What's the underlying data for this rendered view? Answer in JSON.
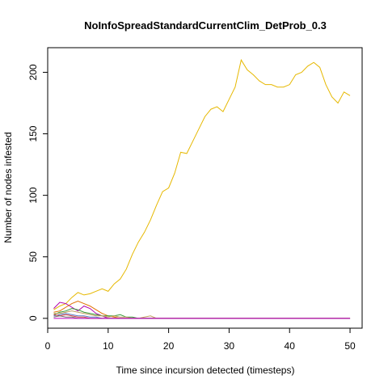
{
  "chart_data": {
    "type": "line",
    "title": "NoInfoSpreadStandardCurrentClim_DetProb_0.3",
    "xlabel": "Time since incursion detected (timesteps)",
    "ylabel": "Number of nodes infested",
    "xlim": [
      0,
      52
    ],
    "ylim": [
      -8,
      220
    ],
    "xticks": [
      0,
      10,
      20,
      30,
      40,
      50
    ],
    "yticks": [
      0,
      50,
      100,
      150,
      200
    ],
    "grid": false,
    "legend": "none",
    "series": [
      {
        "color": "#E6B800",
        "x": [
          1,
          2,
          3,
          4,
          5,
          6,
          7,
          8,
          9,
          10,
          11,
          12,
          13,
          14,
          15,
          16,
          17,
          18,
          19,
          20,
          21,
          22,
          23,
          24,
          25,
          26,
          27,
          28,
          29,
          30,
          31,
          32,
          33,
          34,
          35,
          36,
          37,
          38,
          39,
          40,
          41,
          42,
          43,
          44,
          45,
          46,
          47,
          48,
          49,
          50
        ],
        "y": [
          7,
          10,
          12,
          17,
          21,
          19,
          20,
          22,
          24,
          22,
          28,
          32,
          40,
          52,
          62,
          70,
          80,
          92,
          103,
          106,
          118,
          135,
          134,
          144,
          154,
          164,
          170,
          172,
          168,
          178,
          188,
          210,
          202,
          198,
          193,
          190,
          190,
          188,
          188,
          190,
          198,
          200,
          205,
          208,
          204,
          190,
          180,
          175,
          184,
          181
        ]
      },
      {
        "color": "#B000B0",
        "x": [
          1,
          2,
          3,
          4,
          5,
          6,
          7,
          8,
          9,
          10,
          11,
          12,
          13,
          14,
          15,
          16,
          17,
          18,
          19,
          20,
          21,
          22,
          23,
          24,
          25,
          26,
          27,
          28,
          29,
          30,
          31,
          32,
          33,
          34,
          35,
          36,
          37,
          38,
          39,
          40,
          41,
          42,
          43,
          44,
          45,
          46,
          47,
          48,
          49,
          50
        ],
        "y": [
          8,
          13,
          12,
          9,
          6,
          10,
          8,
          4,
          2,
          0,
          0,
          0,
          0,
          0,
          0,
          0,
          0,
          0,
          0,
          0,
          0,
          0,
          0,
          0,
          0,
          0,
          0,
          0,
          0,
          0,
          0,
          0,
          0,
          0,
          0,
          0,
          0,
          0,
          0,
          0,
          0,
          0,
          0,
          0,
          0,
          0,
          0,
          0,
          0,
          0
        ]
      },
      {
        "color": "#E07000",
        "x": [
          1,
          2,
          3,
          4,
          5,
          6,
          7,
          8,
          9,
          10,
          11,
          12,
          13,
          14,
          15,
          16,
          17,
          18,
          19,
          20,
          21,
          22,
          23,
          24,
          25,
          26,
          27,
          28,
          29,
          30,
          31,
          32,
          33,
          34,
          35,
          36,
          37,
          38,
          39,
          40,
          41,
          42,
          43,
          44,
          45,
          46,
          47,
          48,
          49,
          50
        ],
        "y": [
          5,
          6,
          9,
          12,
          14,
          12,
          10,
          7,
          4,
          2,
          1,
          0,
          0,
          0,
          0,
          0,
          0,
          0,
          0,
          0,
          0,
          0,
          0,
          0,
          0,
          0,
          0,
          0,
          0,
          0,
          0,
          0,
          0,
          0,
          0,
          0,
          0,
          0,
          0,
          0,
          0,
          0,
          0,
          0,
          0,
          0,
          0,
          0,
          0,
          0
        ]
      },
      {
        "color": "#3A9A3A",
        "x": [
          1,
          2,
          3,
          4,
          5,
          6,
          7,
          8,
          9,
          10,
          11,
          12,
          13,
          14,
          15,
          16,
          17,
          18,
          19,
          20,
          21,
          22,
          23,
          24,
          25,
          26,
          27,
          28,
          29,
          30,
          31,
          32,
          33,
          34,
          35,
          36,
          37,
          38,
          39,
          40,
          41,
          42,
          43,
          44,
          45,
          46,
          47,
          48,
          49,
          50
        ],
        "y": [
          3,
          5,
          6,
          8,
          7,
          5,
          4,
          3,
          2,
          2,
          2,
          3,
          1,
          1,
          0,
          0,
          0,
          0,
          0,
          0,
          0,
          0,
          0,
          0,
          0,
          0,
          0,
          0,
          0,
          0,
          0,
          0,
          0,
          0,
          0,
          0,
          0,
          0,
          0,
          0,
          0,
          0,
          0,
          0,
          0,
          0,
          0,
          0,
          0,
          0
        ]
      },
      {
        "color": "#C0A060",
        "x": [
          1,
          2,
          3,
          4,
          5,
          6,
          7,
          8,
          9,
          10,
          11,
          12,
          13,
          14,
          15,
          16,
          17,
          18,
          19,
          20,
          21,
          22,
          23,
          24,
          25,
          26,
          27,
          28,
          29,
          30,
          31,
          32,
          33,
          34,
          35,
          36,
          37,
          38,
          39,
          40,
          41,
          42,
          43,
          44,
          45,
          46,
          47,
          48,
          49,
          50
        ],
        "y": [
          4,
          4,
          5,
          6,
          5,
          4,
          3,
          2,
          2,
          1,
          2,
          1,
          1,
          0,
          0,
          1,
          2,
          0,
          0,
          0,
          0,
          0,
          0,
          0,
          0,
          0,
          0,
          0,
          0,
          0,
          0,
          0,
          0,
          0,
          0,
          0,
          0,
          0,
          0,
          0,
          0,
          0,
          0,
          0,
          0,
          0,
          0,
          0,
          0,
          0
        ]
      },
      {
        "color": "#5A7AC8",
        "x": [
          1,
          2,
          3,
          4,
          5,
          6,
          7,
          8,
          9,
          10,
          11,
          12,
          13,
          14,
          15,
          16,
          17,
          18,
          19,
          20,
          21,
          22,
          23,
          24,
          25,
          26,
          27,
          28,
          29,
          30,
          31,
          32,
          33,
          34,
          35,
          36,
          37,
          38,
          39,
          40,
          41,
          42,
          43,
          44,
          45,
          46,
          47,
          48,
          49,
          50
        ],
        "y": [
          2,
          3,
          4,
          3,
          2,
          2,
          1,
          1,
          0,
          0,
          0,
          0,
          0,
          0,
          0,
          0,
          0,
          0,
          0,
          0,
          0,
          0,
          0,
          0,
          0,
          0,
          0,
          0,
          0,
          0,
          0,
          0,
          0,
          0,
          0,
          0,
          0,
          0,
          0,
          0,
          0,
          0,
          0,
          0,
          0,
          0,
          0,
          0,
          0,
          0
        ]
      },
      {
        "color": "#D04040",
        "x": [
          1,
          2,
          3,
          4,
          5,
          6,
          7,
          8,
          9,
          10,
          11,
          12,
          13,
          14,
          15,
          16,
          17,
          18,
          19,
          20,
          21,
          22,
          23,
          24,
          25,
          26,
          27,
          28,
          29,
          30,
          31,
          32,
          33,
          34,
          35,
          36,
          37,
          38,
          39,
          40,
          41,
          42,
          43,
          44,
          45,
          46,
          47,
          48,
          49,
          50
        ],
        "y": [
          3,
          2,
          3,
          2,
          1,
          1,
          0,
          0,
          0,
          0,
          0,
          0,
          0,
          0,
          0,
          0,
          0,
          0,
          0,
          0,
          0,
          0,
          0,
          0,
          0,
          0,
          0,
          0,
          0,
          0,
          0,
          0,
          0,
          0,
          0,
          0,
          0,
          0,
          0,
          0,
          0,
          0,
          0,
          0,
          0,
          0,
          0,
          0,
          0,
          0
        ]
      },
      {
        "color": "#707070",
        "x": [
          1,
          2,
          3,
          4,
          5,
          6,
          7,
          8,
          9,
          10,
          11,
          12,
          13,
          14,
          15,
          16,
          17,
          18,
          19,
          20,
          21,
          22,
          23,
          24,
          25,
          26,
          27,
          28,
          29,
          30,
          31,
          32,
          33,
          34,
          35,
          36,
          37,
          38,
          39,
          40,
          41,
          42,
          43,
          44,
          45,
          46,
          47,
          48,
          49,
          50
        ],
        "y": [
          1,
          2,
          1,
          1,
          0,
          0,
          0,
          0,
          0,
          0,
          0,
          0,
          0,
          0,
          0,
          0,
          0,
          0,
          0,
          0,
          0,
          0,
          0,
          0,
          0,
          0,
          0,
          0,
          0,
          0,
          0,
          0,
          0,
          0,
          0,
          0,
          0,
          0,
          0,
          0,
          0,
          0,
          0,
          0,
          0,
          0,
          0,
          0,
          0,
          0
        ]
      },
      {
        "color": "#C000C0",
        "x": [
          1,
          50
        ],
        "y": [
          0,
          0
        ]
      }
    ]
  }
}
